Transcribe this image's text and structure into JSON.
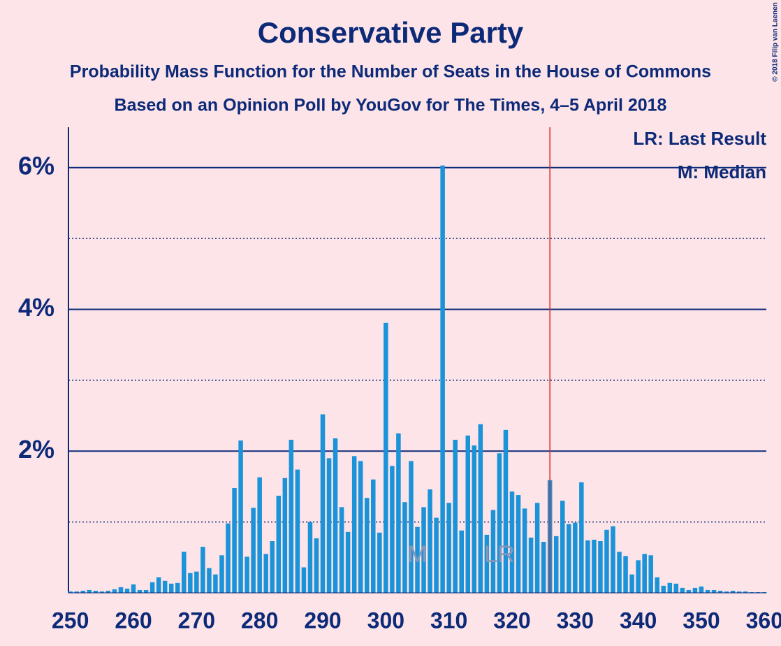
{
  "chart_data": {
    "type": "bar",
    "title": "Conservative Party",
    "subtitle": "Probability Mass Function for the Number of Seats in the House of Commons",
    "subtitle2": "Based on an Opinion Poll by YouGov for The Times, 4–5 April 2018",
    "credit": "© 2018 Filip van Laenen",
    "legend": [
      "LR: Last Result",
      "M: Median"
    ],
    "annotations": [
      {
        "text": "M",
        "x": 305
      },
      {
        "text": "LR",
        "x": 318
      }
    ],
    "majority_line": 326,
    "color": "#1a93d9",
    "x": [
      250,
      251,
      252,
      253,
      254,
      255,
      256,
      257,
      258,
      259,
      260,
      261,
      262,
      263,
      264,
      265,
      266,
      267,
      268,
      269,
      270,
      271,
      272,
      273,
      274,
      275,
      276,
      277,
      278,
      279,
      280,
      281,
      282,
      283,
      284,
      285,
      286,
      287,
      288,
      289,
      290,
      291,
      292,
      293,
      294,
      295,
      296,
      297,
      298,
      299,
      300,
      301,
      302,
      303,
      304,
      305,
      306,
      307,
      308,
      309,
      310,
      311,
      312,
      313,
      314,
      315,
      316,
      317,
      318,
      319,
      320,
      321,
      322,
      323,
      324,
      325,
      326,
      327,
      328,
      329,
      330,
      331,
      332,
      333,
      334,
      335,
      336,
      337,
      338,
      339,
      340,
      341,
      342,
      343,
      344,
      345,
      346,
      347,
      348,
      349,
      350,
      351,
      352,
      353,
      354,
      355,
      356,
      357,
      358,
      359,
      360
    ],
    "values": [
      0.02,
      0.02,
      0.03,
      0.04,
      0.03,
      0.02,
      0.03,
      0.05,
      0.08,
      0.06,
      0.12,
      0.04,
      0.04,
      0.15,
      0.22,
      0.17,
      0.13,
      0.14,
      0.58,
      0.28,
      0.3,
      0.65,
      0.35,
      0.26,
      0.53,
      0.98,
      1.48,
      2.15,
      0.51,
      1.2,
      1.63,
      0.55,
      0.73,
      1.37,
      1.62,
      2.16,
      1.74,
      0.36,
      1.0,
      0.77,
      2.52,
      1.9,
      2.18,
      1.21,
      0.86,
      1.93,
      1.86,
      1.34,
      1.6,
      0.85,
      3.81,
      1.79,
      2.25,
      1.28,
      1.86,
      0.93,
      1.21,
      1.46,
      1.06,
      6.03,
      1.27,
      2.16,
      0.88,
      2.22,
      2.08,
      2.38,
      0.82,
      1.17,
      1.97,
      2.3,
      1.43,
      1.38,
      1.19,
      0.78,
      1.27,
      0.72,
      1.59,
      0.8,
      1.3,
      0.97,
      0.99,
      1.56,
      0.74,
      0.75,
      0.73,
      0.89,
      0.94,
      0.58,
      0.52,
      0.26,
      0.46,
      0.55,
      0.53,
      0.22,
      0.1,
      0.14,
      0.13,
      0.07,
      0.04,
      0.07,
      0.09,
      0.04,
      0.04,
      0.03,
      0.02,
      0.03,
      0.02,
      0.02,
      0.01,
      0.01,
      0.01
    ],
    "xlim": [
      249.7,
      360.3
    ],
    "xticks": [
      250,
      260,
      270,
      280,
      290,
      300,
      310,
      320,
      330,
      340,
      350,
      360
    ],
    "ylim": [
      0,
      6.57
    ],
    "yticks": [
      {
        "value": 2,
        "label": "2%"
      },
      {
        "value": 4,
        "label": "4%"
      },
      {
        "value": 6,
        "label": "6%"
      }
    ],
    "minor_yticks": [
      1,
      3,
      5
    ],
    "grid": true
  }
}
